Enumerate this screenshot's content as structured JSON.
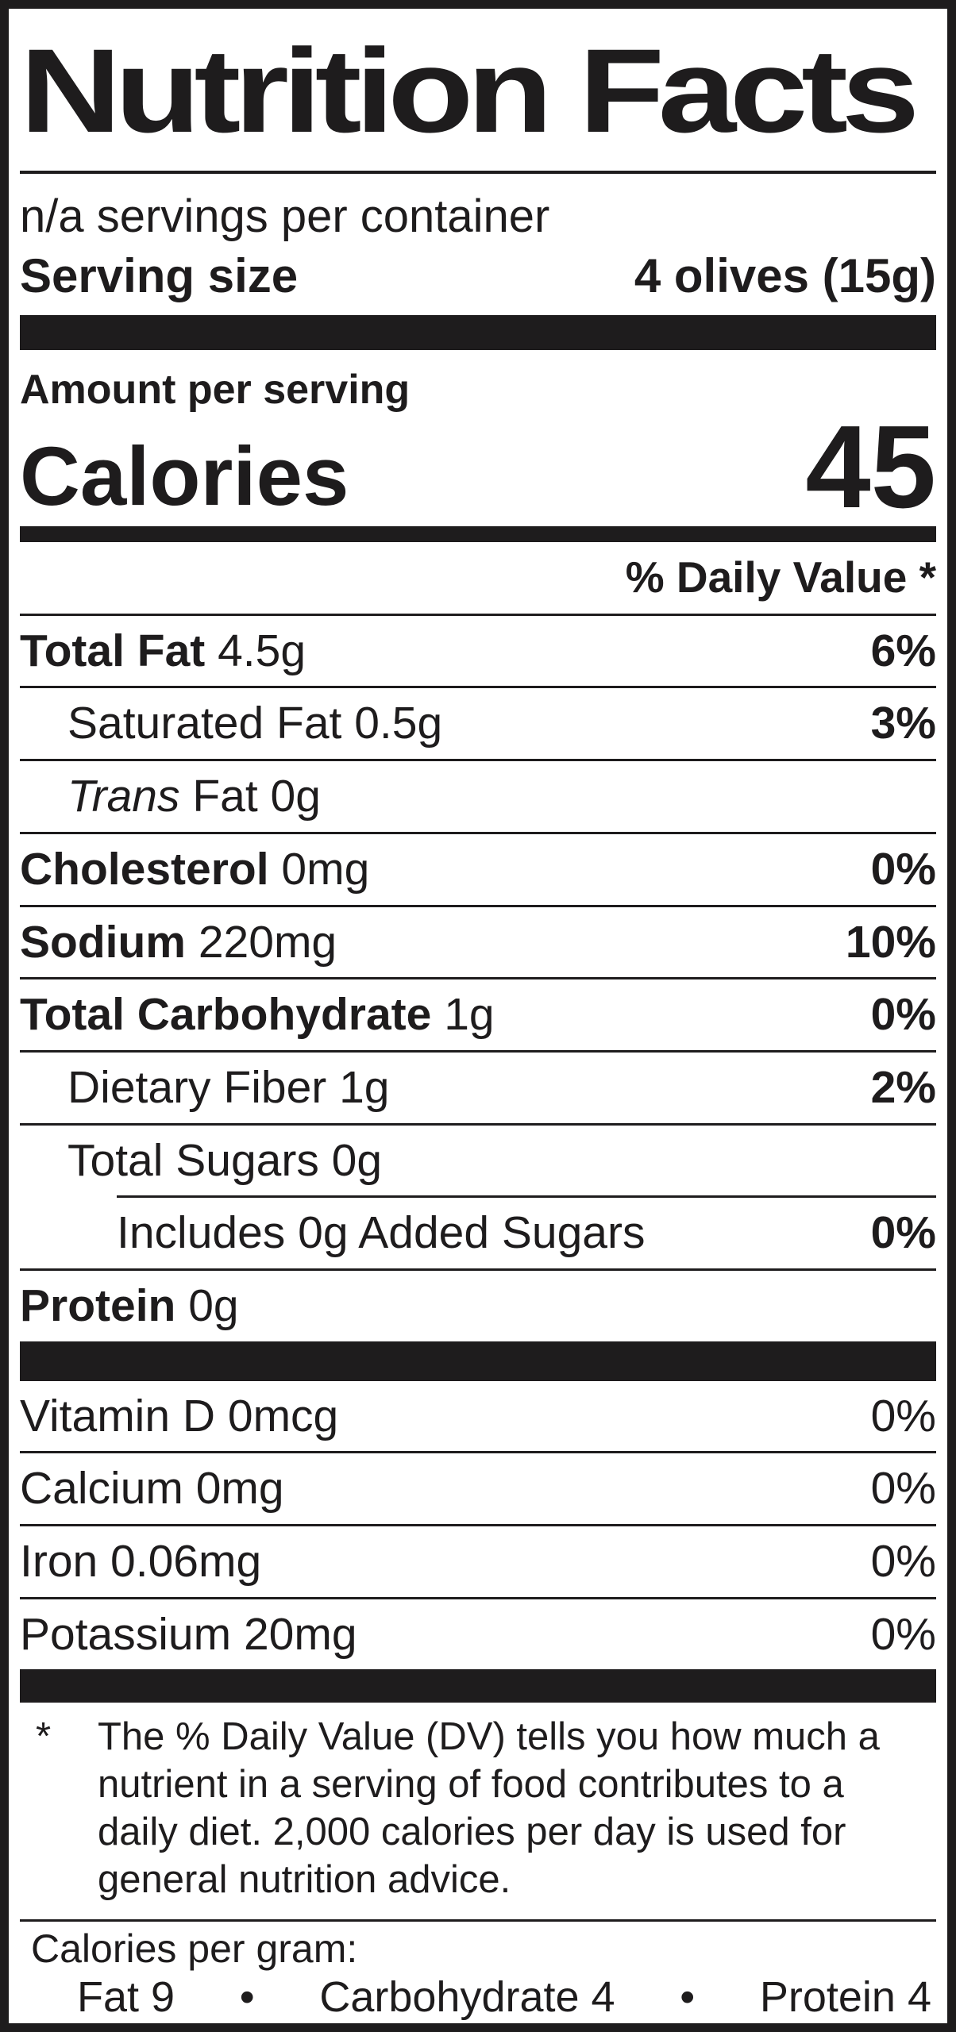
{
  "title": "Nutrition Facts",
  "servings_per_container": "n/a servings per container",
  "serving_size": {
    "label": "Serving size",
    "value": "4 olives (15g)"
  },
  "amount_per_serving": "Amount per serving",
  "calories": {
    "label": "Calories",
    "value": "45"
  },
  "daily_value_header": "% Daily Value *",
  "rows": [
    {
      "bold": "Total Fat",
      "rest": "4.5g",
      "dv": "6%"
    },
    {
      "bold": "",
      "rest": "Saturated Fat 0.5g",
      "dv": "3%"
    },
    {
      "italic": "Trans",
      "rest": "Fat 0g",
      "dv": ""
    },
    {
      "bold": "Cholesterol",
      "rest": "0mg",
      "dv": "0%"
    },
    {
      "bold": "Sodium",
      "rest": "220mg",
      "dv": "10%"
    },
    {
      "bold": "Total Carbohydrate",
      "rest": "1g",
      "dv": "0%"
    },
    {
      "bold": "",
      "rest": "Dietary Fiber 1g",
      "dv": "2%"
    },
    {
      "bold": "",
      "rest": "Total Sugars 0g",
      "dv": ""
    },
    {
      "bold": "",
      "rest": "Includes 0g Added Sugars",
      "dv": "0%"
    },
    {
      "bold": "Protein",
      "rest": "0g",
      "dv": ""
    }
  ],
  "vitamins": [
    {
      "name": "Vitamin D 0mcg",
      "dv": "0%"
    },
    {
      "name": "Calcium 0mg",
      "dv": "0%"
    },
    {
      "name": "Iron 0.06mg",
      "dv": "0%"
    },
    {
      "name": "Potassium 20mg",
      "dv": "0%"
    }
  ],
  "footnote": {
    "marker": "*",
    "text": "The % Daily Value (DV) tells you how much a nutrient in a serving of food contributes to a daily diet. 2,000 calories per day is used for general nutrition advice."
  },
  "calories_per_gram": {
    "label": "Calories per gram:",
    "items": [
      "Fat 9",
      "•",
      "Carbohydrate 4",
      "•",
      "Protein 4"
    ]
  },
  "colors": {
    "ink": "#1e1c1d",
    "background": "#ffffff"
  }
}
